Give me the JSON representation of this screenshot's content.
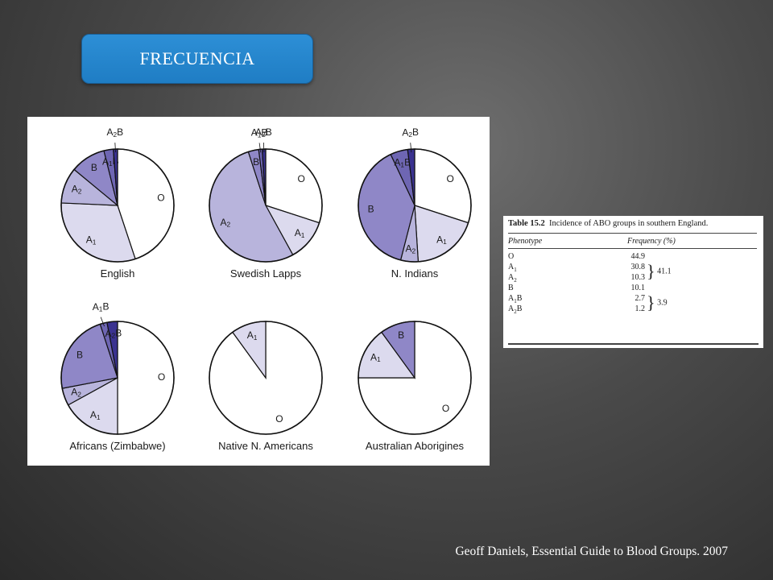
{
  "slide": {
    "title": "FRECUENCIA",
    "citation": "Geoff Daniels, Essential Guide to Blood Groups. 2007"
  },
  "colors": {
    "O": "#ffffff",
    "A1": "#dcdaee",
    "A2": "#b8b4dc",
    "B": "#8f87c7",
    "A1B": "#6e66b3",
    "A2B": "#3a3290"
  },
  "chart_data": [
    {
      "type": "pie",
      "title": "English",
      "labels": [
        "O",
        "A1",
        "A2",
        "B",
        "A1B",
        "A2B"
      ],
      "values": [
        44.9,
        30.8,
        10.3,
        10.1,
        2.7,
        1.2
      ]
    },
    {
      "type": "pie",
      "title": "Swedish Lapps",
      "labels": [
        "O",
        "A1",
        "A2",
        "B",
        "A1B",
        "A2B"
      ],
      "values": [
        30,
        12,
        53,
        3,
        1,
        1
      ]
    },
    {
      "type": "pie",
      "title": "N. Indians",
      "labels": [
        "O",
        "A1",
        "A2",
        "B",
        "A1B",
        "A2B"
      ],
      "values": [
        30,
        19,
        5,
        39,
        5,
        2
      ]
    },
    {
      "type": "pie",
      "title": "Africans (Zimbabwe)",
      "labels": [
        "O",
        "A1",
        "A2",
        "B",
        "A1B",
        "A2B"
      ],
      "values": [
        50,
        17,
        5,
        23,
        2,
        3
      ]
    },
    {
      "type": "pie",
      "title": "Native N. Americans",
      "labels": [
        "O",
        "A1"
      ],
      "values": [
        90,
        10
      ]
    },
    {
      "type": "pie",
      "title": "Australian Aborigines",
      "labels": [
        "O",
        "A1",
        "B"
      ],
      "values": [
        75,
        15,
        10
      ]
    },
    {
      "type": "table",
      "caption_num": "Table 15.2",
      "caption": "Incidence of ABO groups in southern England.",
      "columns": [
        "Phenotype",
        "Frequency (%)"
      ],
      "rows": [
        {
          "phenotype": "O",
          "sub": "",
          "tail": "",
          "freq": "44.9"
        },
        {
          "phenotype": "A",
          "sub": "1",
          "tail": "",
          "freq": "30.8"
        },
        {
          "phenotype": "A",
          "sub": "2",
          "tail": "",
          "freq": "10.3"
        },
        {
          "phenotype": "B",
          "sub": "",
          "tail": "",
          "freq": "10.1"
        },
        {
          "phenotype": "A",
          "sub": "1",
          "tail": "B",
          "freq": "2.7"
        },
        {
          "phenotype": "A",
          "sub": "2",
          "tail": "B",
          "freq": "1.2"
        }
      ],
      "group_totals": {
        "A": "41.1",
        "AB": "3.9"
      }
    }
  ]
}
